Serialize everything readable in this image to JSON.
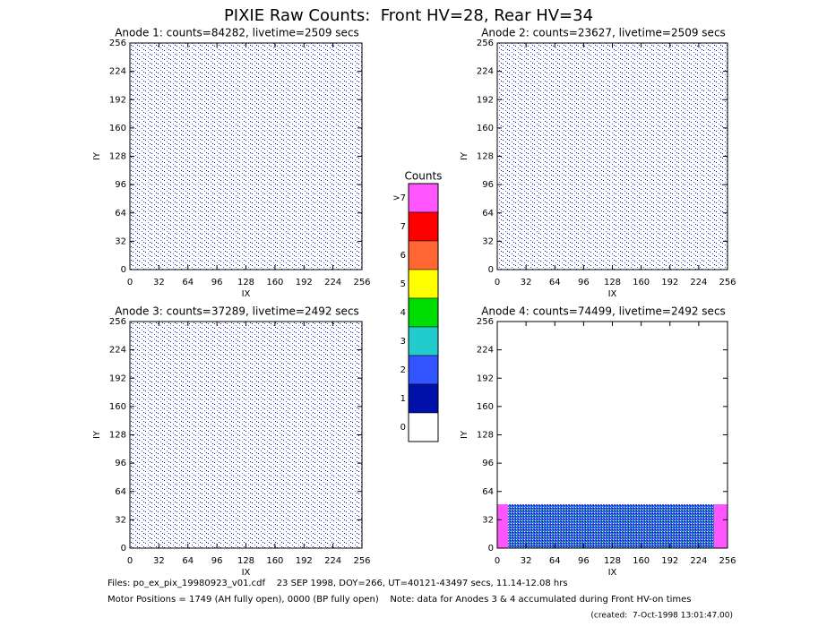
{
  "title": "PIXIE Raw Counts:  Front HV=28, Rear HV=34",
  "chart_data": [
    {
      "type": "heatmap",
      "title": "Anode 1: counts=84282, livetime=2509 secs",
      "xlabel": "IX",
      "ylabel": "IY",
      "xlim": [
        0,
        256
      ],
      "ylim": [
        0,
        256
      ],
      "xticks": [
        0,
        32,
        64,
        96,
        128,
        160,
        192,
        224,
        256
      ],
      "yticks": [
        0,
        32,
        64,
        96,
        128,
        160,
        192,
        224,
        256
      ]
    },
    {
      "type": "heatmap",
      "title": "Anode 2: counts=23627, livetime=2509 secs",
      "xlabel": "IX",
      "ylabel": "IY",
      "xlim": [
        0,
        256
      ],
      "ylim": [
        0,
        256
      ],
      "xticks": [
        0,
        32,
        64,
        96,
        128,
        160,
        192,
        224,
        256
      ],
      "yticks": [
        0,
        32,
        64,
        96,
        128,
        160,
        192,
        224,
        256
      ]
    },
    {
      "type": "heatmap",
      "title": "Anode 3: counts=37289, livetime=2492 secs",
      "xlabel": "IX",
      "ylabel": "IY",
      "xlim": [
        0,
        256
      ],
      "ylim": [
        0,
        256
      ],
      "xticks": [
        0,
        32,
        64,
        96,
        128,
        160,
        192,
        224,
        256
      ],
      "yticks": [
        0,
        32,
        64,
        96,
        128,
        160,
        192,
        224,
        256
      ]
    },
    {
      "type": "heatmap",
      "title": "Anode 4: counts=74499, livetime=2492 secs",
      "xlabel": "IX",
      "ylabel": "IY",
      "xlim": [
        0,
        256
      ],
      "ylim": [
        0,
        256
      ],
      "xticks": [
        0,
        32,
        64,
        96,
        128,
        160,
        192,
        224,
        256
      ],
      "yticks": [
        0,
        32,
        64,
        96,
        128,
        160,
        192,
        224,
        256
      ]
    }
  ],
  "colorbar": {
    "title": "Counts",
    "levels": [
      {
        "label": ">7",
        "color": "#ff55ff"
      },
      {
        "label": "7",
        "color": "#ff0000"
      },
      {
        "label": "6",
        "color": "#ff6633"
      },
      {
        "label": "5",
        "color": "#ffff00"
      },
      {
        "label": "4",
        "color": "#00dd00"
      },
      {
        "label": "3",
        "color": "#22cccc"
      },
      {
        "label": "2",
        "color": "#3355ff"
      },
      {
        "label": "1",
        "color": "#0011aa"
      },
      {
        "label": "0",
        "color": "#ffffff"
      }
    ]
  },
  "footer": {
    "files": "Files: po_ex_pix_19980923_v01.cdf    23 SEP 1998, DOY=266, UT=40121-43497 secs, 11.14-12.08 hrs",
    "motor": "Motor Positions = 1749 (AH fully open), 0000 (BP fully open)    Note: data for Anodes 3 & 4 accumulated during Front HV-on times",
    "created": "(created:  7-Oct-1998 13:01:47.00)"
  }
}
